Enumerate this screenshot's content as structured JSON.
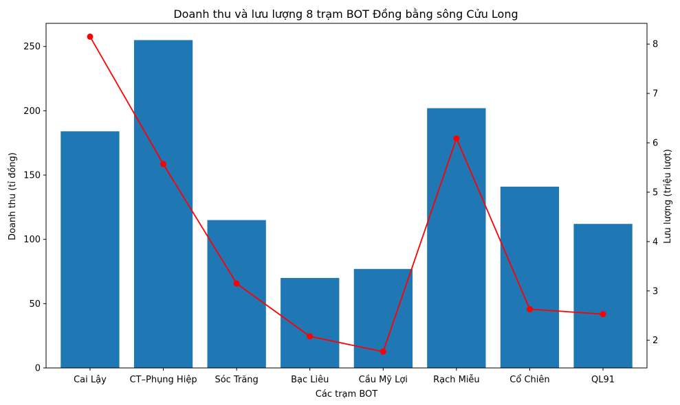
{
  "chart_data": {
    "type": "bar",
    "title": "Doanh thu và lưu lượng 8 trạm BOT Đồng bằng sông Cửu Long",
    "xlabel": "Các trạm BOT",
    "ylabel": "Doanh thu (tỉ đồng)",
    "y2label": "Lưu lượng (triệu lượt)",
    "categories": [
      "Cai Lậy",
      "CT–Phụng Hiệp",
      "Sóc Trăng",
      "Bạc Liêu",
      "Cầu Mỹ Lợi",
      "Rạch Miễu",
      "Cổ Chiên",
      "QL91"
    ],
    "series": [
      {
        "type": "bar",
        "axis": "left",
        "color": "#1f77b4",
        "values": [
          184,
          255,
          115,
          70,
          77,
          202,
          141,
          112
        ]
      },
      {
        "type": "line",
        "axis": "right",
        "color": "#ff0000",
        "values": [
          8.15,
          5.57,
          3.15,
          2.08,
          1.77,
          6.09,
          2.63,
          2.53
        ]
      }
    ],
    "ylim": [
      0,
      268
    ],
    "y2lim": [
      1.44,
      8.42
    ],
    "yticks": [
      0,
      50,
      100,
      150,
      200,
      250
    ],
    "y2ticks": [
      2,
      3,
      4,
      5,
      6,
      7,
      8
    ],
    "grid": false,
    "legend": "none"
  }
}
